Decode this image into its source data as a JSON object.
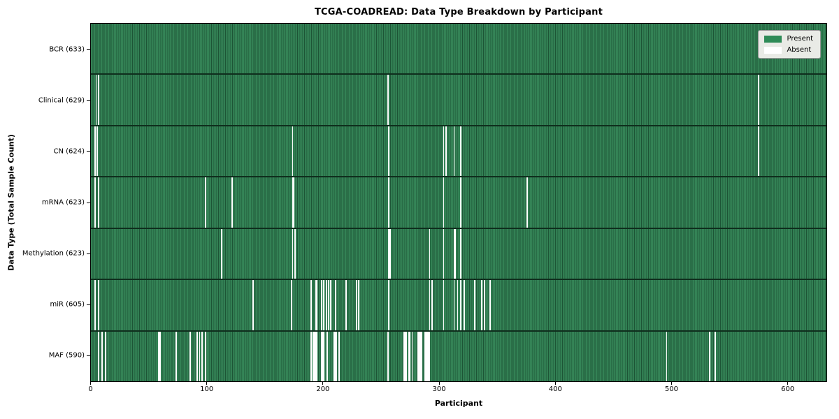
{
  "chart_data": {
    "type": "heatmap",
    "title": "TCGA-COADREAD: Data Type Breakdown by Participant",
    "xlabel": "Participant",
    "ylabel": "Data Type (Total Sample Count)",
    "x_range": [
      0,
      633
    ],
    "x_ticks": [
      0,
      100,
      200,
      300,
      400,
      500,
      600
    ],
    "grid": false,
    "legend_position": "upper right",
    "legend": [
      {
        "label": "Present",
        "color": "#2e8b57"
      },
      {
        "label": "Absent",
        "color": "#ffffff"
      }
    ],
    "colors": {
      "present_fill": "#37895a",
      "present_edge": "#1d5536",
      "row_separator": "#0f2e1d",
      "absent_fill": "#ffffff"
    },
    "rows": [
      {
        "name": "BCR",
        "label": "BCR (633)",
        "total": 633,
        "absent": []
      },
      {
        "name": "Clinical",
        "label": "Clinical (629)",
        "total": 629,
        "absent": [
          4,
          6,
          255,
          574
        ]
      },
      {
        "name": "CN",
        "label": "CN (624)",
        "total": 624,
        "absent": [
          3,
          5,
          173,
          256,
          303,
          305,
          312,
          318,
          574
        ]
      },
      {
        "name": "mRNA",
        "label": "mRNA (623)",
        "total": 623,
        "absent": [
          3,
          6,
          98,
          121,
          173,
          174,
          256,
          303,
          318,
          375
        ]
      },
      {
        "name": "Methylation",
        "label": "Methylation (623)",
        "total": 623,
        "absent": [
          112,
          173,
          175,
          256,
          257,
          291,
          303,
          312,
          313,
          318
        ]
      },
      {
        "name": "miR",
        "label": "miR (605)",
        "total": 605,
        "absent": [
          3,
          6,
          139,
          172,
          189,
          193,
          194,
          198,
          200,
          202,
          204,
          206,
          210,
          219,
          228,
          230,
          256,
          291,
          293,
          303,
          312,
          315,
          318,
          321,
          330,
          336,
          338,
          343
        ]
      },
      {
        "name": "MAF",
        "label": "MAF (590)",
        "total": 590,
        "absent": [
          6,
          9,
          12,
          58,
          59,
          73,
          85,
          91,
          93,
          95,
          98,
          189,
          191,
          192,
          193,
          194,
          198,
          199,
          200,
          203,
          209,
          210,
          211,
          213,
          255,
          269,
          270,
          271,
          273,
          274,
          276,
          281,
          282,
          283,
          284,
          287,
          288,
          289,
          290,
          291,
          495,
          532,
          537
        ]
      }
    ]
  }
}
